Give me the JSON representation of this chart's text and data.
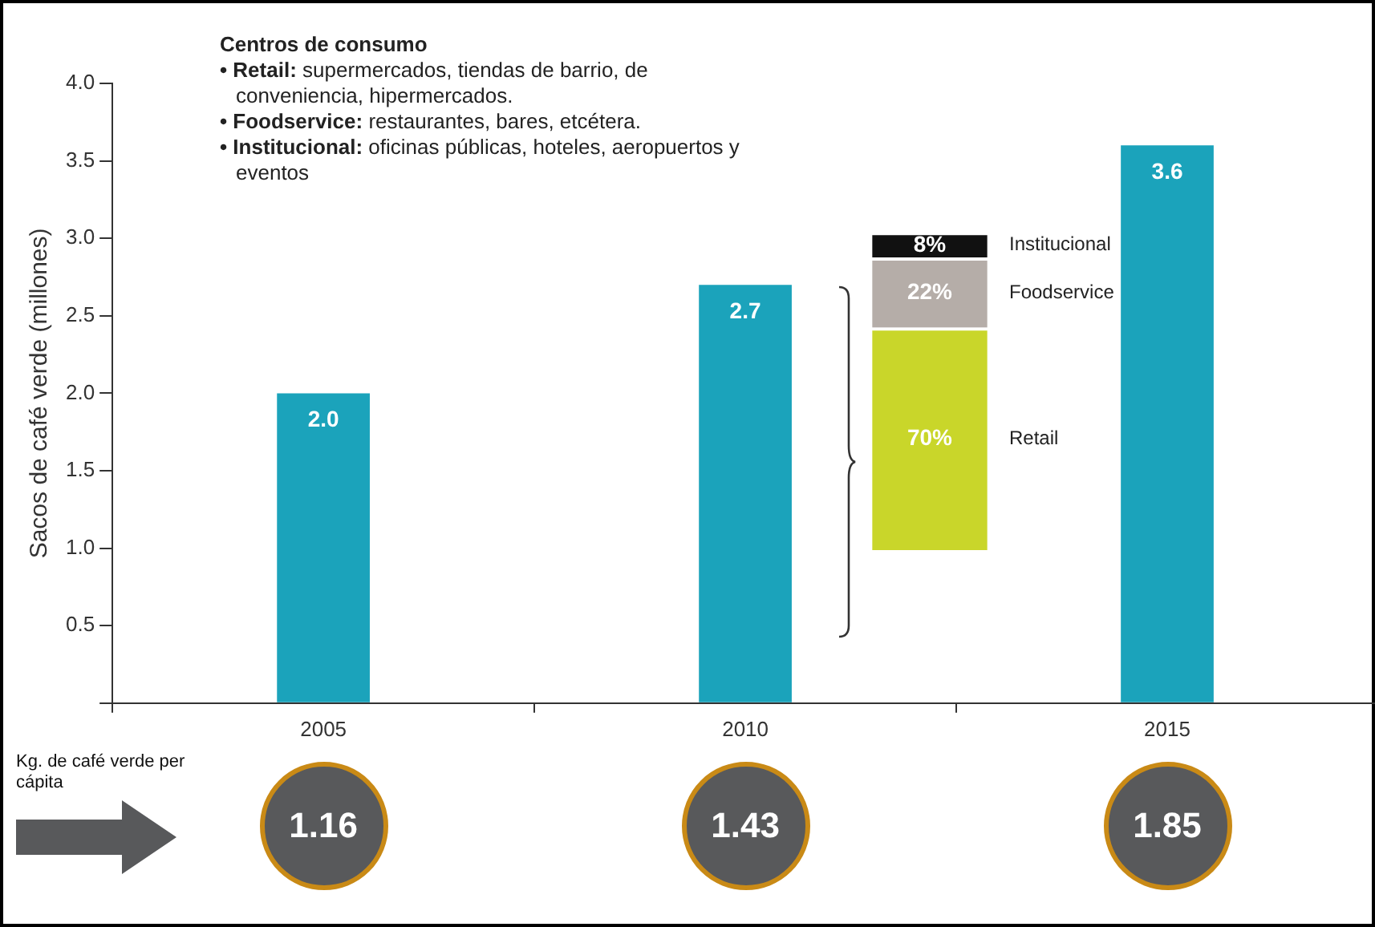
{
  "chart_data": [
    {
      "type": "bar",
      "categories": [
        "2005",
        "2010",
        "2015"
      ],
      "values": [
        2.0,
        2.7,
        3.6
      ],
      "value_labels": [
        "2.0",
        "2.7",
        "3.6"
      ],
      "color": "#1ba3bb",
      "ylabel": "Sacos de café verde (millones)",
      "ylim": [
        0,
        4.0
      ],
      "yticks": [
        {
          "value": 0,
          "label": null
        },
        {
          "value": 0.5,
          "label": "0.5"
        },
        {
          "value": 1,
          "label": "1.0"
        },
        {
          "value": 1.5,
          "label": "1.5"
        },
        {
          "value": 2,
          "label": "2.0"
        },
        {
          "value": 2.5,
          "label": "2.5"
        },
        {
          "value": 3,
          "label": "3.0"
        },
        {
          "value": 3.5,
          "label": "3.5"
        },
        {
          "value": 4,
          "label": "4.0"
        }
      ],
      "annotations": [
        "Centros de consumo",
        "• Retail: supermercados, tiendas de barrio, de conveniencia, hipermercados.",
        "• Foodservice: restaurantes, bares, etcétera.",
        "• Institucional: oficinas públicas, hoteles, aeropuertos y eventos"
      ],
      "grid": false,
      "legend": false
    },
    {
      "type": "bar",
      "stacked": true,
      "categories": [
        null
      ],
      "series": [
        {
          "name": "Retail",
          "color": "#c9d62a",
          "values": [
            70
          ],
          "value_labels": [
            "70%"
          ]
        },
        {
          "name": "Foodservice",
          "color": "#b5ada8",
          "values": [
            22
          ],
          "value_labels": [
            "22%"
          ]
        },
        {
          "name": "Institucional",
          "color": "#111111",
          "values": [
            8
          ],
          "value_labels": [
            "8%"
          ]
        }
      ],
      "legend": false
    },
    {
      "type": "other",
      "title": "Kg. de café verde per cápita",
      "values": [
        1.16,
        1.43,
        1.85
      ],
      "data_labels": true,
      "color": "#58595b"
    }
  ]
}
